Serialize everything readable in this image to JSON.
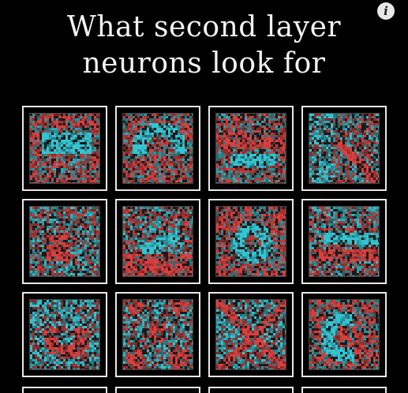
{
  "title_line1": "What second layer",
  "title_line2": "neurons look for",
  "info_icon": "info-icon",
  "colors": {
    "background": "#000000",
    "positive": "#35c4d1",
    "negative": "#d8403f",
    "frame": "#e9e9e9"
  },
  "grid": {
    "rows": 3,
    "cols": 4,
    "cells": [
      {
        "motif": "blob-center"
      },
      {
        "motif": "curve-top"
      },
      {
        "motif": "bar-low"
      },
      {
        "motif": "diag-right"
      },
      {
        "motif": "spots"
      },
      {
        "motif": "streak-mid"
      },
      {
        "motif": "arc-center"
      },
      {
        "motif": "bar-mid"
      },
      {
        "motif": "ring-low"
      },
      {
        "motif": "patches"
      },
      {
        "motif": "cross"
      },
      {
        "motif": "curl"
      }
    ]
  }
}
